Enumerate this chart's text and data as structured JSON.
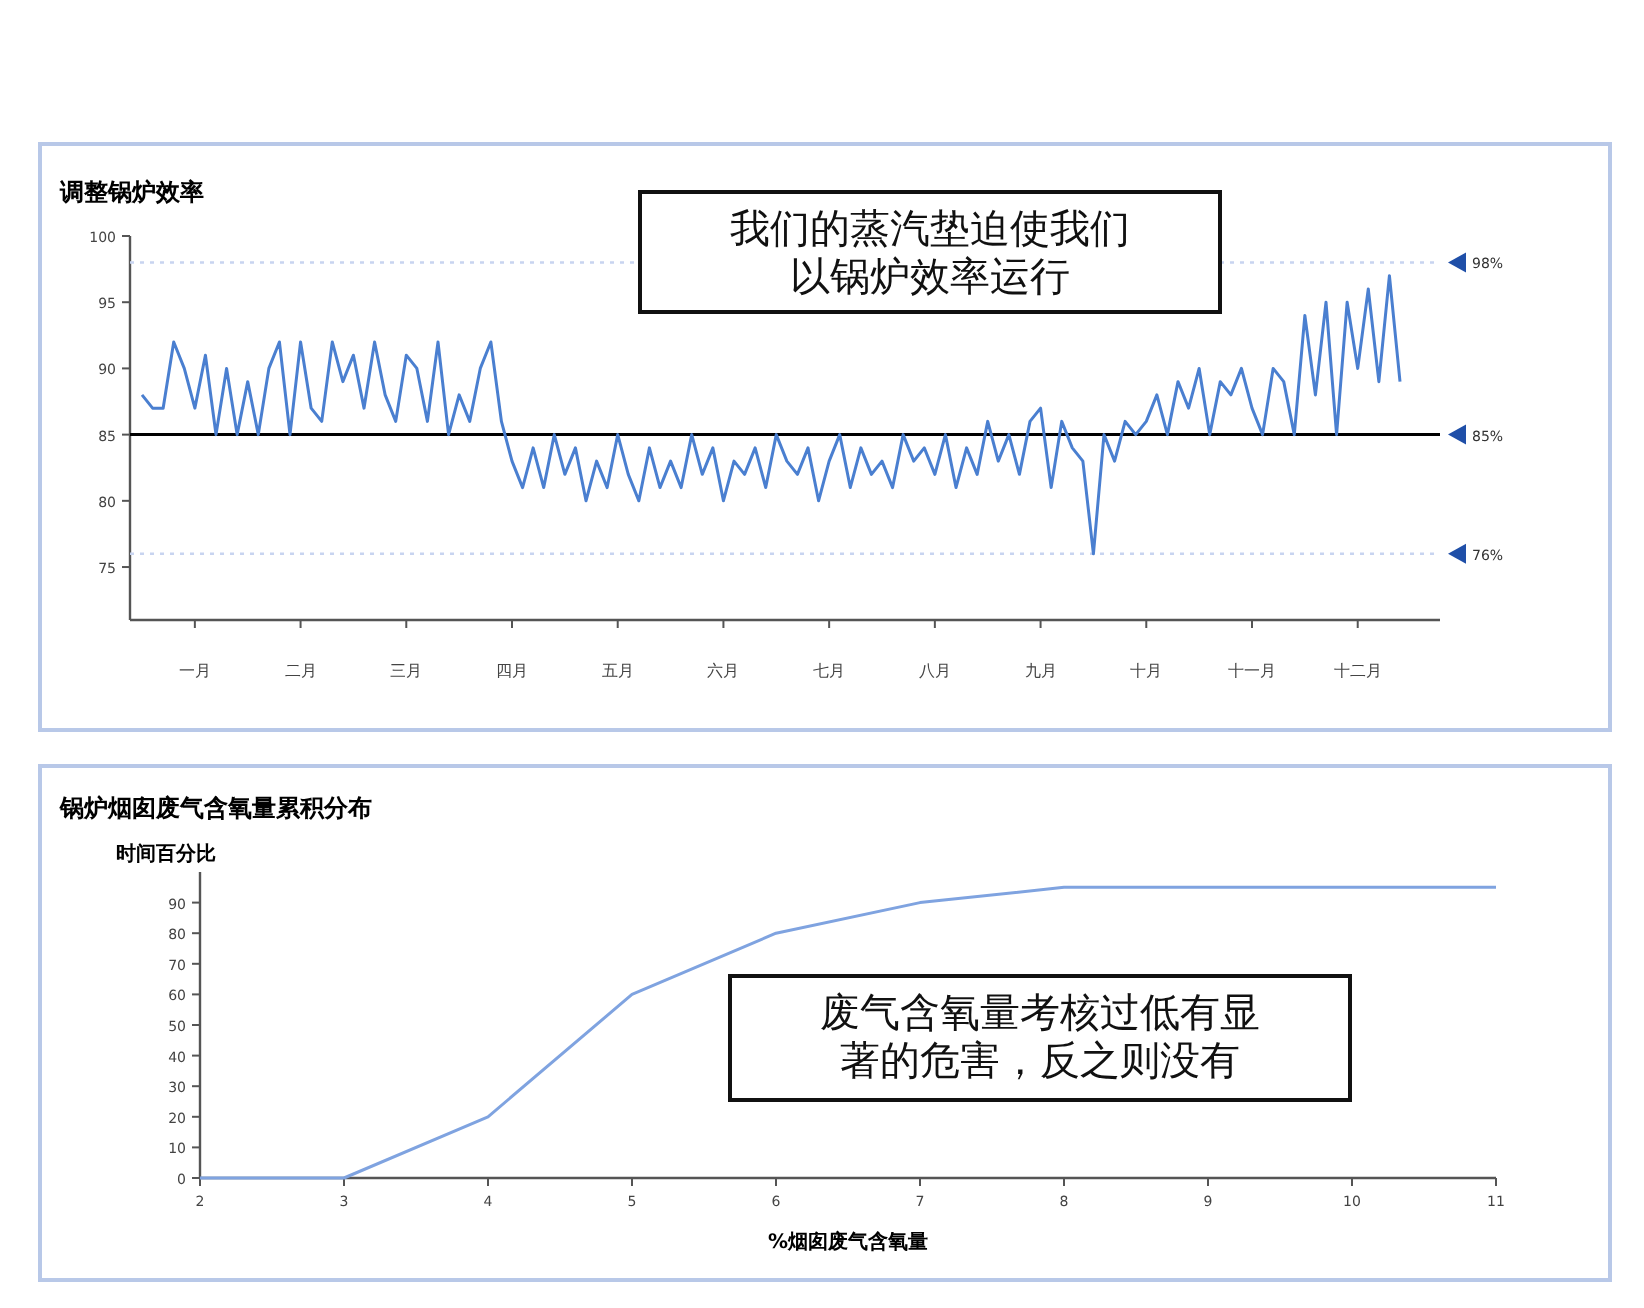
{
  "chart_data": [
    {
      "type": "line",
      "title": "调整锅炉效率",
      "annotations": [
        "我们的蒸汽垫迫使我们以锅炉效率运行"
      ],
      "categories": [
        null,
        null,
        null,
        null,
        null,
        "一月",
        null,
        null,
        null,
        null,
        null,
        null,
        null,
        null,
        null,
        "二月",
        null,
        null,
        null,
        null,
        null,
        null,
        null,
        null,
        null,
        "三月",
        null,
        null,
        null,
        null,
        null,
        null,
        null,
        null,
        null,
        "四月",
        null,
        null,
        null,
        null,
        null,
        null,
        null,
        null,
        null,
        "五月",
        null,
        null,
        null,
        null,
        null,
        null,
        null,
        null,
        null,
        "六月",
        null,
        null,
        null,
        null,
        null,
        null,
        null,
        null,
        null,
        "七月",
        null,
        null,
        null,
        null,
        null,
        null,
        null,
        null,
        null,
        "八月",
        null,
        null,
        null,
        null,
        null,
        null,
        null,
        null,
        null,
        "九月",
        null,
        null,
        null,
        null,
        null,
        null,
        null,
        null,
        null,
        "十月",
        null,
        null,
        null,
        null,
        null,
        null,
        null,
        null,
        null,
        "十一月",
        null,
        null,
        null,
        null,
        null,
        null,
        null,
        null,
        null,
        "十二月",
        null,
        null,
        null,
        null
      ],
      "series": [
        {
          "color": "#4a7fd0",
          "values": [
            88,
            87,
            87,
            92,
            90,
            87,
            91,
            85,
            90,
            85,
            89,
            85,
            90,
            92,
            85,
            92,
            87,
            86,
            92,
            89,
            91,
            87,
            92,
            88,
            86,
            91,
            90,
            86,
            92,
            85,
            88,
            86,
            90,
            92,
            86,
            83,
            81,
            84,
            81,
            85,
            82,
            84,
            80,
            83,
            81,
            85,
            82,
            80,
            84,
            81,
            83,
            81,
            85,
            82,
            84,
            80,
            83,
            82,
            84,
            81,
            85,
            83,
            82,
            84,
            80,
            83,
            85,
            81,
            84,
            82,
            83,
            81,
            85,
            83,
            84,
            82,
            85,
            81,
            84,
            82,
            86,
            83,
            85,
            82,
            86,
            87,
            81,
            86,
            84,
            83,
            76,
            85,
            83,
            86,
            85,
            86,
            88,
            85,
            89,
            87,
            90,
            85,
            89,
            88,
            90,
            87,
            85,
            90,
            89,
            85,
            94,
            88,
            95,
            85,
            95,
            90,
            96,
            89,
            97,
            89
          ]
        }
      ],
      "ylim": [
        71,
        100
      ],
      "yticks": [
        75,
        80,
        85,
        90,
        95,
        100
      ],
      "ref_lines": [
        {
          "axis": "y",
          "value": 98,
          "label": "98%",
          "color": "#c8d4f0",
          "line_style": "dotted"
        },
        {
          "axis": "y",
          "value": 85,
          "label": "85%",
          "color": "#000000",
          "line_style": "solid"
        },
        {
          "axis": "y",
          "value": 76,
          "label": "76%",
          "color": "#c8d4f0",
          "line_style": "dotted"
        }
      ],
      "marker": "none",
      "line_style": "solid"
    },
    {
      "type": "line",
      "title": "锅炉烟囱废气含氧量累积分布",
      "ylabel": "时间百分比",
      "xlabel": "%烟囱废气含氧量",
      "annotations": [
        "废气含氧量考核过低有显著的危害，反之则没有"
      ],
      "x": [
        2,
        3,
        4,
        5,
        6,
        7,
        8,
        9,
        10,
        11
      ],
      "series": [
        {
          "color": "#7fa3e0",
          "values": [
            0,
            0,
            20,
            60,
            80,
            90,
            95,
            95,
            95,
            95
          ]
        }
      ],
      "xlim": [
        2,
        11
      ],
      "xticks": [
        2,
        3,
        4,
        5,
        6,
        7,
        8,
        9,
        10,
        11
      ],
      "ylim": [
        0,
        100
      ],
      "yticks": [
        0,
        10,
        20,
        30,
        40,
        50,
        60,
        70,
        80,
        90
      ],
      "marker": "none",
      "line_style": "solid"
    }
  ]
}
